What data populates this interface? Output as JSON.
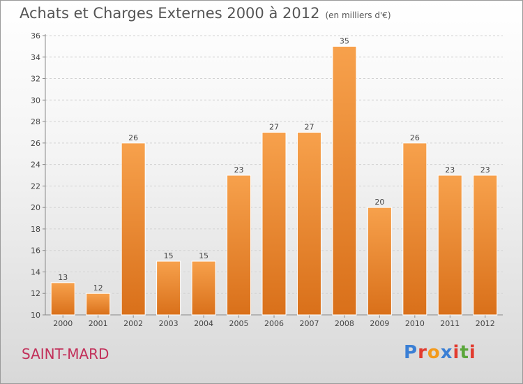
{
  "header": {
    "title": "Achats et Charges Externes 2000 à 2012",
    "unit": "(en milliers d'€)"
  },
  "footer": {
    "commune": "SAINT-MARD",
    "logo": "Proxiti",
    "logo_colors": [
      "#3a7fd5",
      "#e23b2e",
      "#f39a1c",
      "#3a7fd5",
      "#e23b2e",
      "#5aa63a",
      "#e23b2e"
    ]
  },
  "chart_data": {
    "type": "bar",
    "title": "Achats et Charges Externes 2000 à 2012",
    "subtitle": "(en milliers d'€)",
    "xlabel": "",
    "ylabel": "",
    "categories": [
      "2000",
      "2001",
      "2002",
      "2003",
      "2004",
      "2005",
      "2006",
      "2007",
      "2008",
      "2009",
      "2010",
      "2011",
      "2012"
    ],
    "values": [
      13,
      12,
      26,
      15,
      15,
      23,
      27,
      27,
      35,
      20,
      26,
      23,
      23
    ],
    "ylim": [
      10,
      36
    ],
    "yticks": [
      10,
      12,
      14,
      16,
      18,
      20,
      22,
      24,
      26,
      28,
      30,
      32,
      34,
      36
    ],
    "grid": true,
    "legend": "none",
    "bar_color": "#f0882a"
  }
}
